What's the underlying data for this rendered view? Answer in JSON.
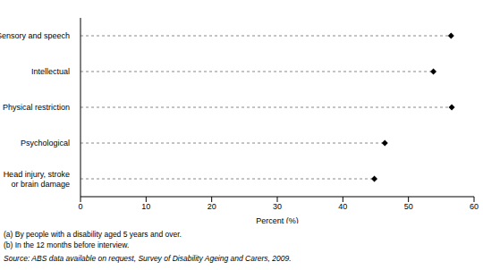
{
  "chart_data": {
    "type": "dot",
    "orientation": "horizontal",
    "categories": [
      "Sensory and speech",
      "Intellectual",
      "Physical restriction",
      "Psychological",
      "Head injury, stroke or brain damage"
    ],
    "values": [
      56.5,
      53.8,
      56.6,
      46.4,
      44.8
    ],
    "color": "#000000",
    "marker": "diamond",
    "line_style": "dashed",
    "xlim": [
      0,
      60
    ],
    "xticks": [
      0,
      10,
      20,
      30,
      40,
      50,
      60
    ],
    "x_label": "Percent (%)",
    "notes": [
      "(a) By people with a disability aged 5 years and over.",
      "(b) In the 12 months before interview."
    ],
    "source": "Source: ABS data available on request, Survey of Disability Ageing and Carers, 2009."
  }
}
